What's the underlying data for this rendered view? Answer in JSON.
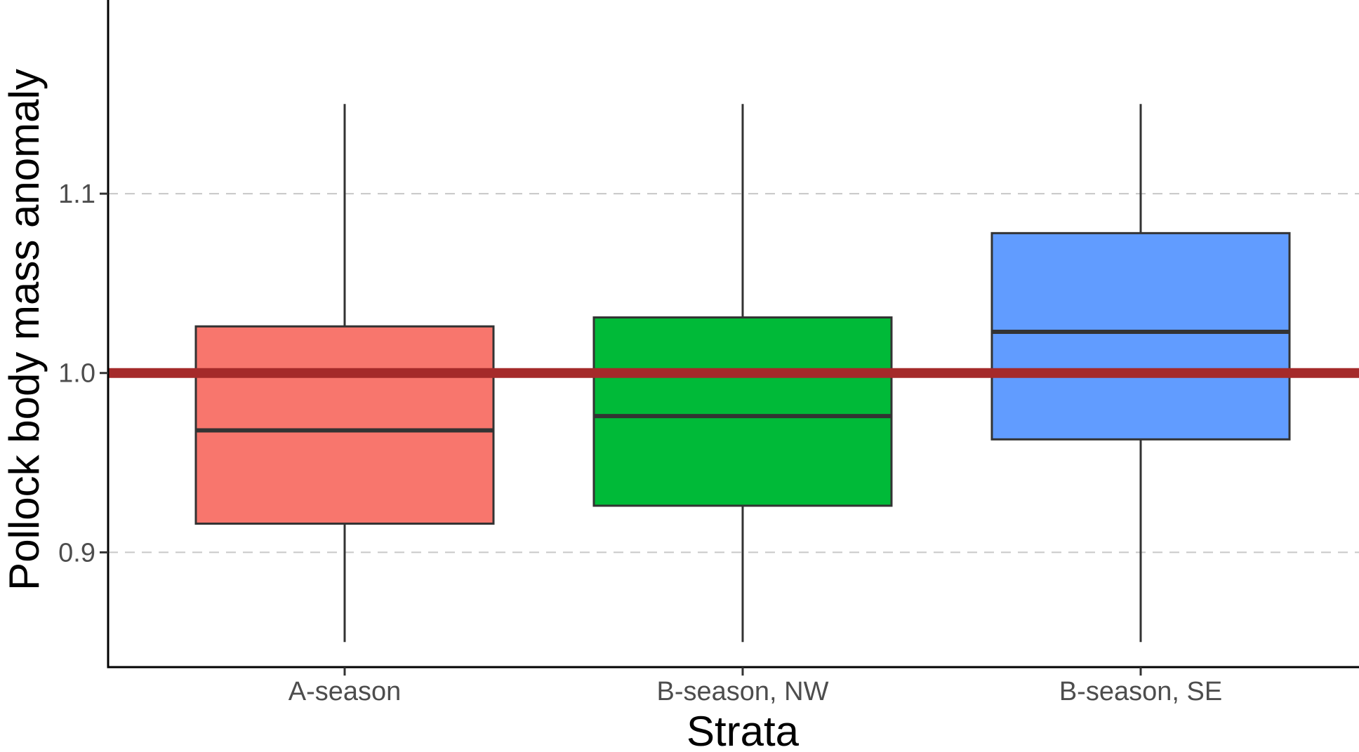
{
  "chart_data": {
    "type": "boxplot",
    "title": "",
    "xlabel": "Strata",
    "ylabel": "Pollock body mass anomaly",
    "categories": [
      "A-season",
      "B-season, NW",
      "B-season, SE"
    ],
    "boxes": [
      {
        "category": "A-season",
        "whisker_low": 0.85,
        "q1": 0.916,
        "median": 0.968,
        "q3": 1.026,
        "whisker_high": 1.15,
        "color": "#F8766D"
      },
      {
        "category": "B-season, NW",
        "whisker_low": 0.85,
        "q1": 0.926,
        "median": 0.976,
        "q3": 1.031,
        "whisker_high": 1.15,
        "color": "#00BA38"
      },
      {
        "category": "B-season, SE",
        "whisker_low": 0.85,
        "q1": 0.963,
        "median": 1.023,
        "q3": 1.078,
        "whisker_high": 1.15,
        "color": "#619CFF"
      }
    ],
    "yticks": [
      0.9,
      1.0,
      1.1
    ],
    "ytick_labels": [
      "0.9",
      "1.0",
      "1.1"
    ],
    "ylim": [
      0.836,
      1.208
    ],
    "reference_line": {
      "y": 1.0,
      "color": "#A52A2A"
    },
    "grid": {
      "y_major": true,
      "style": "dashed",
      "color": "#C8C8C8"
    },
    "legend": "none"
  }
}
